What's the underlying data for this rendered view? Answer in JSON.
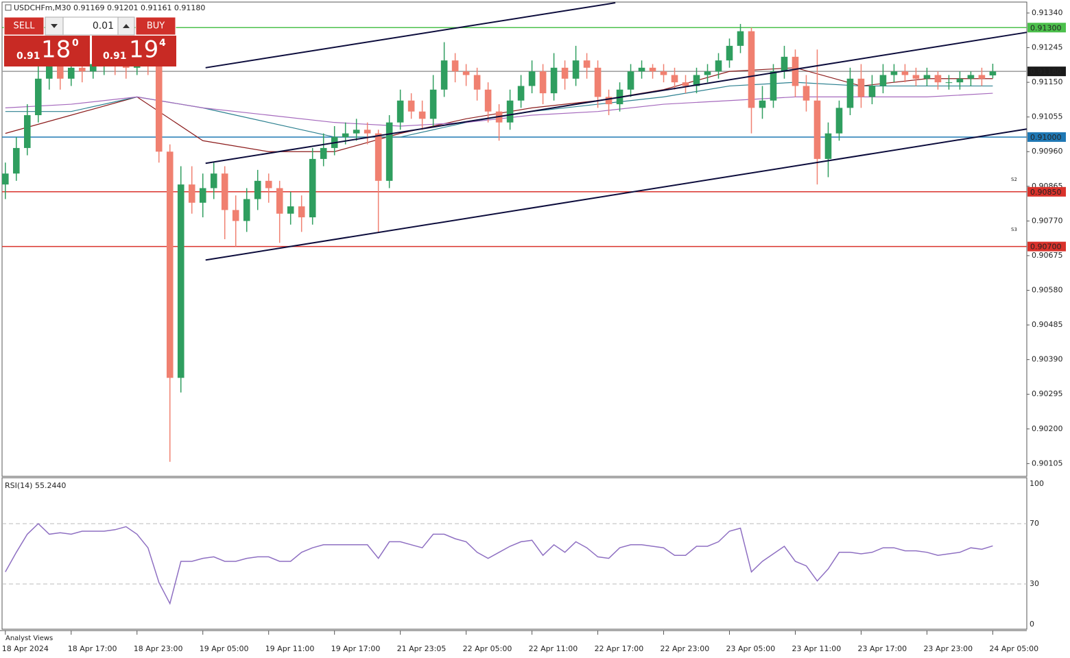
{
  "chart_data": {
    "type": "candlestick",
    "title": "USDCHFm,M30  0.91169 0.91201 0.91161 0.91180",
    "bull_color": "#2f9e5f",
    "bear_color": "#f08070",
    "xlim": [
      -0.3,
      93.1
    ],
    "ylim": [
      0.9007,
      0.9137
    ],
    "yticks": [
      {
        "value": 0.9134,
        "label": "0.91340"
      },
      {
        "value": 0.91245,
        "label": "0.91245"
      },
      {
        "value": 0.9115,
        "label": "0.91150"
      },
      {
        "value": 0.91055,
        "label": "0.91055"
      },
      {
        "value": 0.9096,
        "label": "0.90960"
      },
      {
        "value": 0.90865,
        "label": "0.90865"
      },
      {
        "value": 0.9077,
        "label": "0.90770"
      },
      {
        "value": 0.90675,
        "label": "0.90675"
      },
      {
        "value": 0.9058,
        "label": "0.90580"
      },
      {
        "value": 0.90485,
        "label": "0.90485"
      },
      {
        "value": 0.9039,
        "label": "0.90390"
      },
      {
        "value": 0.90295,
        "label": "0.90295"
      },
      {
        "value": 0.902,
        "label": "0.90200"
      },
      {
        "value": 0.90105,
        "label": "0.90105"
      }
    ],
    "xticks": [
      {
        "value": 0,
        "label": "18 Apr 2024"
      },
      {
        "value": 6,
        "label": "18 Apr 17:00"
      },
      {
        "value": 12,
        "label": "18 Apr 23:00"
      },
      {
        "value": 18,
        "label": "19 Apr 05:00"
      },
      {
        "value": 24,
        "label": "19 Apr 11:00"
      },
      {
        "value": 30,
        "label": "19 Apr 17:00"
      },
      {
        "value": 36,
        "label": "21 Apr 23:05"
      },
      {
        "value": 42,
        "label": "22 Apr 05:00"
      },
      {
        "value": 48,
        "label": "22 Apr 11:00"
      },
      {
        "value": 54,
        "label": "22 Apr 17:00"
      },
      {
        "value": 60,
        "label": "22 Apr 23:00"
      },
      {
        "value": 66,
        "label": "23 Apr 05:00"
      },
      {
        "value": 72,
        "label": "23 Apr 11:00"
      },
      {
        "value": 78,
        "label": "23 Apr 17:00"
      },
      {
        "value": 84,
        "label": "23 Apr 23:00"
      },
      {
        "value": 90,
        "label": "24 Apr 05:00"
      }
    ],
    "open": [
      0.9087,
      0.909,
      0.9097,
      0.9106,
      0.9116,
      0.912,
      0.9116,
      0.9119,
      0.9118,
      0.912,
      0.9121,
      0.912,
      0.9119,
      0.9121,
      0.912,
      0.9096,
      0.9034,
      0.9087,
      0.9082,
      0.9086,
      0.909,
      0.908,
      0.9077,
      0.9083,
      0.9088,
      0.9086,
      0.9079,
      0.9081,
      0.9078,
      0.9094,
      0.9097,
      0.91,
      0.9101,
      0.9102,
      0.9101,
      0.9088,
      0.9104,
      0.911,
      0.9107,
      0.9105,
      0.9113,
      0.9121,
      0.9118,
      0.9117,
      0.9113,
      0.9107,
      0.9104,
      0.911,
      0.9114,
      0.9118,
      0.9112,
      0.9119,
      0.9116,
      0.9121,
      0.9119,
      0.9111,
      0.9109,
      0.9113,
      0.9118,
      0.9119,
      0.9118,
      0.9117,
      0.9115,
      0.9114,
      0.9117,
      0.9118,
      0.9121,
      0.9125,
      0.9129,
      0.9108,
      0.911,
      0.9118,
      0.9122,
      0.9114,
      0.911,
      0.9094,
      0.9101,
      0.9108,
      0.9116,
      0.9111,
      0.9114,
      0.9117,
      0.9118,
      0.9117,
      0.9116,
      0.9117,
      0.9115,
      0.9115,
      0.9116,
      0.9117,
      0.91169
    ],
    "high": [
      0.9093,
      0.91,
      0.9109,
      0.912,
      0.9124,
      0.9122,
      0.9121,
      0.9121,
      0.9122,
      0.9123,
      0.9123,
      0.9122,
      0.9123,
      0.9122,
      0.9122,
      0.9098,
      0.9092,
      0.9092,
      0.909,
      0.9093,
      0.9092,
      0.9084,
      0.9086,
      0.9091,
      0.909,
      0.9088,
      0.9085,
      0.9084,
      0.9097,
      0.9101,
      0.9103,
      0.9104,
      0.9105,
      0.9104,
      0.9102,
      0.9106,
      0.9113,
      0.9112,
      0.911,
      0.9117,
      0.9126,
      0.9123,
      0.912,
      0.9119,
      0.9115,
      0.9109,
      0.9113,
      0.9117,
      0.9121,
      0.912,
      0.9123,
      0.9121,
      0.9125,
      0.9123,
      0.9121,
      0.9113,
      0.9115,
      0.912,
      0.9121,
      0.912,
      0.912,
      0.9119,
      0.9117,
      0.9119,
      0.912,
      0.9123,
      0.9127,
      0.9131,
      0.913,
      0.9114,
      0.912,
      0.9125,
      0.9124,
      0.9117,
      0.9124,
      0.9104,
      0.911,
      0.9119,
      0.912,
      0.9117,
      0.912,
      0.912,
      0.912,
      0.9119,
      0.9119,
      0.9118,
      0.9117,
      0.9118,
      0.9118,
      0.9119,
      0.91201
    ],
    "low": [
      0.9083,
      0.9088,
      0.9095,
      0.9104,
      0.9113,
      0.9113,
      0.9114,
      0.9115,
      0.9116,
      0.9117,
      0.9117,
      0.9116,
      0.9117,
      0.9117,
      0.9093,
      0.9011,
      0.903,
      0.9079,
      0.9078,
      0.9083,
      0.9072,
      0.907,
      0.9074,
      0.908,
      0.9082,
      0.9071,
      0.9076,
      0.9074,
      0.9076,
      0.9092,
      0.9095,
      0.9098,
      0.9099,
      0.9098,
      0.9074,
      0.9086,
      0.9102,
      0.9105,
      0.9102,
      0.9103,
      0.9111,
      0.9115,
      0.9114,
      0.911,
      0.9104,
      0.9099,
      0.9102,
      0.9108,
      0.9112,
      0.9109,
      0.911,
      0.9113,
      0.9114,
      0.9116,
      0.9108,
      0.9106,
      0.9107,
      0.9111,
      0.9116,
      0.9116,
      0.9115,
      0.9113,
      0.9112,
      0.9112,
      0.9115,
      0.9116,
      0.9119,
      0.9123,
      0.9101,
      0.9105,
      0.9108,
      0.9116,
      0.9111,
      0.9107,
      0.9087,
      0.9089,
      0.9099,
      0.9106,
      0.9108,
      0.9109,
      0.9112,
      0.9115,
      0.9115,
      0.9114,
      0.9114,
      0.9113,
      0.9113,
      0.9113,
      0.9114,
      0.9114,
      0.91161
    ],
    "close": [
      0.909,
      0.9097,
      0.9106,
      0.9116,
      0.912,
      0.9116,
      0.9119,
      0.9118,
      0.912,
      0.9121,
      0.912,
      0.9119,
      0.9121,
      0.912,
      0.9096,
      0.9034,
      0.9087,
      0.9082,
      0.9086,
      0.909,
      0.908,
      0.9077,
      0.9083,
      0.9088,
      0.9086,
      0.9079,
      0.9081,
      0.9078,
      0.9094,
      0.9097,
      0.91,
      0.9101,
      0.9102,
      0.9101,
      0.9088,
      0.9104,
      0.911,
      0.9107,
      0.9105,
      0.9113,
      0.9121,
      0.9118,
      0.9117,
      0.9113,
      0.9107,
      0.9104,
      0.911,
      0.9114,
      0.9118,
      0.9112,
      0.9119,
      0.9116,
      0.9121,
      0.9119,
      0.9111,
      0.9109,
      0.9113,
      0.9118,
      0.9119,
      0.9118,
      0.9117,
      0.9115,
      0.9114,
      0.9117,
      0.9118,
      0.9121,
      0.9125,
      0.9129,
      0.9108,
      0.911,
      0.9118,
      0.9122,
      0.9114,
      0.911,
      0.9094,
      0.9101,
      0.9108,
      0.9116,
      0.9111,
      0.9114,
      0.9117,
      0.9118,
      0.9117,
      0.9116,
      0.9117,
      0.9115,
      0.9115,
      0.9116,
      0.9117,
      0.9116,
      0.9118
    ],
    "moving_averages": [
      {
        "color": "#8b1a1a",
        "x": [
          0,
          6,
          12,
          18,
          24,
          30,
          36,
          42,
          48,
          54,
          60,
          66,
          72,
          78,
          84,
          90
        ],
        "values": [
          0.9101,
          0.9106,
          0.9111,
          0.9099,
          0.9096,
          0.9096,
          0.9101,
          0.9105,
          0.9108,
          0.911,
          0.9113,
          0.9118,
          0.9119,
          0.9114,
          0.9116,
          0.9116
        ]
      },
      {
        "color": "#2a7f8f",
        "x": [
          0,
          6,
          12,
          18,
          24,
          30,
          36,
          42,
          48,
          54,
          60,
          66,
          72,
          78,
          84,
          90
        ],
        "values": [
          0.9107,
          0.9107,
          0.9111,
          0.9108,
          0.9104,
          0.91,
          0.91,
          0.9104,
          0.9107,
          0.9109,
          0.9111,
          0.9114,
          0.9115,
          0.9114,
          0.9114,
          0.9114
        ]
      },
      {
        "color": "#a569bd",
        "x": [
          0,
          6,
          12,
          18,
          24,
          30,
          36,
          42,
          48,
          54,
          60,
          66,
          72,
          78,
          84,
          90
        ],
        "values": [
          0.9108,
          0.9109,
          0.9111,
          0.9108,
          0.9106,
          0.9104,
          0.9103,
          0.9104,
          0.9106,
          0.9107,
          0.9109,
          0.911,
          0.9111,
          0.9111,
          0.9111,
          0.9112
        ]
      }
    ],
    "trendlines": [
      {
        "color": "#0b0b3b",
        "x": [
          18.25,
          55.6
        ],
        "values": [
          0.9119,
          0.91368
        ]
      },
      {
        "color": "#0b0b3b",
        "x": [
          18.25,
          93.1
        ],
        "values": [
          0.90928,
          0.91287
        ]
      },
      {
        "color": "#0b0b3b",
        "x": [
          18.25,
          93.1
        ],
        "values": [
          0.90663,
          0.91022
        ]
      }
    ],
    "levels": [
      {
        "value": 0.913,
        "label": "0.91300",
        "color": "#4cc04c",
        "label_bg": "#4cc04c"
      },
      {
        "value": 0.9118,
        "label": "0.91180",
        "color": "#9a9a9a",
        "label_bg": "#1a1a1a"
      },
      {
        "value": 0.91,
        "label": "0.91000",
        "color": "#1f78b4",
        "label_bg": "#1f78b4"
      },
      {
        "value": 0.9085,
        "label": "0.90850",
        "color": "#d9322b",
        "label_bg": "#d9322b"
      },
      {
        "value": 0.907,
        "label": "0.90700",
        "color": "#d9322b",
        "label_bg": "#d9322b"
      }
    ],
    "level_marks": [
      {
        "name": "S2",
        "value": 0.90883
      },
      {
        "name": "S3",
        "value": 0.90746
      }
    ],
    "rsi": {
      "title": "RSI(14) 55.2440",
      "color": "#8e6fc2",
      "ylim": [
        0,
        100
      ],
      "yticks": [
        100,
        70,
        30,
        0
      ],
      "values": [
        38,
        51,
        63,
        70,
        63,
        64,
        63,
        65,
        65,
        65,
        66,
        68,
        63,
        54,
        31,
        17,
        45,
        45,
        47,
        48,
        45,
        45,
        47,
        48,
        48,
        45,
        45,
        51,
        54,
        56,
        56,
        56,
        56,
        56,
        47,
        58,
        58,
        56,
        54,
        63,
        63,
        60,
        58,
        51,
        47,
        51,
        55,
        58,
        59,
        49,
        56,
        51,
        58,
        54,
        48,
        47,
        54,
        56,
        56,
        55,
        54,
        49,
        49,
        55,
        55,
        58,
        65,
        67,
        38,
        45,
        50,
        55,
        45,
        42,
        32,
        40,
        51,
        51,
        50,
        51,
        54,
        54,
        52,
        52,
        51,
        49,
        50,
        51,
        54,
        53,
        55.244
      ]
    },
    "footer": "Analyst Views",
    "trade_panel": {
      "sell": "SELL",
      "buy": "BUY",
      "volume": "0.01",
      "bid": {
        "prefix": "0.91",
        "big": "18",
        "small": "0"
      },
      "ask": {
        "prefix": "0.91",
        "big": "19",
        "small": "4"
      }
    }
  }
}
